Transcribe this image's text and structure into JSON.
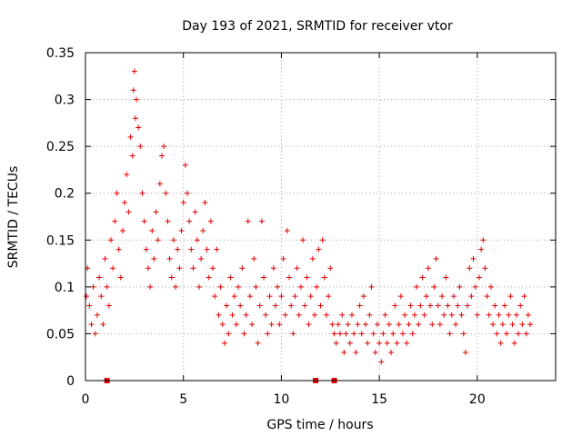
{
  "chart_data": {
    "type": "scatter",
    "title": "Day 193 of 2021, SRMTID for receiver vtor",
    "xlabel": "GPS time / hours",
    "ylabel": "SRMTID / TECUs",
    "xlim": [
      0,
      24
    ],
    "ylim": [
      0,
      0.35
    ],
    "x_ticks": [
      "0",
      "5",
      "10",
      "15",
      "20"
    ],
    "y_ticks": [
      "0",
      "0.05",
      "0.1",
      "0.15",
      "0.2",
      "0.25",
      "0.3",
      "0.35"
    ],
    "grid": true,
    "marker": "+",
    "color": "#e00000",
    "series": [
      {
        "name": "SRMTID",
        "points": [
          [
            0.05,
            0.09
          ],
          [
            0.1,
            0.12
          ],
          [
            0.2,
            0.08
          ],
          [
            0.3,
            0.06
          ],
          [
            0.4,
            0.1
          ],
          [
            0.5,
            0.05
          ],
          [
            0.6,
            0.07
          ],
          [
            0.7,
            0.11
          ],
          [
            0.8,
            0.09
          ],
          [
            0.9,
            0.06
          ],
          [
            1.0,
            0.13
          ],
          [
            1.1,
            0.1
          ],
          [
            1.2,
            0.08
          ],
          [
            1.3,
            0.15
          ],
          [
            1.4,
            0.12
          ],
          [
            1.5,
            0.17
          ],
          [
            1.6,
            0.2
          ],
          [
            1.7,
            0.14
          ],
          [
            1.8,
            0.11
          ],
          [
            1.9,
            0.16
          ],
          [
            2.0,
            0.19
          ],
          [
            2.1,
            0.22
          ],
          [
            2.2,
            0.18
          ],
          [
            2.3,
            0.26
          ],
          [
            2.4,
            0.24
          ],
          [
            2.45,
            0.31
          ],
          [
            2.5,
            0.33
          ],
          [
            2.55,
            0.28
          ],
          [
            2.6,
            0.3
          ],
          [
            2.7,
            0.27
          ],
          [
            2.8,
            0.25
          ],
          [
            2.9,
            0.2
          ],
          [
            3.0,
            0.17
          ],
          [
            3.1,
            0.14
          ],
          [
            3.2,
            0.12
          ],
          [
            3.3,
            0.1
          ],
          [
            3.4,
            0.16
          ],
          [
            3.5,
            0.13
          ],
          [
            3.6,
            0.18
          ],
          [
            3.7,
            0.15
          ],
          [
            3.8,
            0.21
          ],
          [
            3.9,
            0.24
          ],
          [
            4.0,
            0.25
          ],
          [
            4.1,
            0.2
          ],
          [
            4.2,
            0.17
          ],
          [
            4.3,
            0.13
          ],
          [
            4.4,
            0.11
          ],
          [
            4.5,
            0.15
          ],
          [
            4.6,
            0.1
          ],
          [
            4.7,
            0.14
          ],
          [
            4.8,
            0.12
          ],
          [
            4.9,
            0.16
          ],
          [
            5.0,
            0.19
          ],
          [
            5.1,
            0.23
          ],
          [
            5.2,
            0.2
          ],
          [
            5.3,
            0.17
          ],
          [
            5.4,
            0.14
          ],
          [
            5.5,
            0.12
          ],
          [
            5.6,
            0.18
          ],
          [
            5.7,
            0.15
          ],
          [
            5.8,
            0.1
          ],
          [
            5.9,
            0.13
          ],
          [
            6.0,
            0.16
          ],
          [
            6.1,
            0.19
          ],
          [
            6.2,
            0.14
          ],
          [
            6.3,
            0.11
          ],
          [
            6.4,
            0.17
          ],
          [
            6.5,
            0.12
          ],
          [
            6.6,
            0.09
          ],
          [
            6.7,
            0.14
          ],
          [
            6.8,
            0.07
          ],
          [
            6.9,
            0.1
          ],
          [
            7.0,
            0.06
          ],
          [
            7.1,
            0.04
          ],
          [
            7.2,
            0.08
          ],
          [
            7.3,
            0.05
          ],
          [
            7.4,
            0.11
          ],
          [
            7.5,
            0.07
          ],
          [
            7.6,
            0.09
          ],
          [
            7.7,
            0.06
          ],
          [
            7.8,
            0.1
          ],
          [
            7.9,
            0.08
          ],
          [
            8.0,
            0.12
          ],
          [
            8.1,
            0.05
          ],
          [
            8.2,
            0.07
          ],
          [
            8.3,
            0.17
          ],
          [
            8.4,
            0.09
          ],
          [
            8.5,
            0.06
          ],
          [
            8.6,
            0.13
          ],
          [
            8.7,
            0.1
          ],
          [
            8.8,
            0.04
          ],
          [
            8.9,
            0.08
          ],
          [
            9.0,
            0.17
          ],
          [
            9.1,
            0.11
          ],
          [
            9.2,
            0.07
          ],
          [
            9.3,
            0.05
          ],
          [
            9.4,
            0.09
          ],
          [
            9.5,
            0.06
          ],
          [
            9.6,
            0.12
          ],
          [
            9.7,
            0.08
          ],
          [
            9.8,
            0.1
          ],
          [
            9.9,
            0.06
          ],
          [
            10.0,
            0.09
          ],
          [
            10.1,
            0.13
          ],
          [
            10.2,
            0.07
          ],
          [
            10.3,
            0.16
          ],
          [
            10.4,
            0.11
          ],
          [
            10.5,
            0.08
          ],
          [
            10.6,
            0.05
          ],
          [
            10.7,
            0.09
          ],
          [
            10.8,
            0.12
          ],
          [
            10.9,
            0.07
          ],
          [
            11.0,
            0.1
          ],
          [
            11.1,
            0.15
          ],
          [
            11.2,
            0.08
          ],
          [
            11.3,
            0.11
          ],
          [
            11.4,
            0.06
          ],
          [
            11.5,
            0.09
          ],
          [
            11.6,
            0.13
          ],
          [
            11.7,
            0.07
          ],
          [
            11.8,
            0.1
          ],
          [
            11.9,
            0.14
          ],
          [
            12.0,
            0.08
          ],
          [
            12.1,
            0.15
          ],
          [
            12.2,
            0.11
          ],
          [
            12.3,
            0.07
          ],
          [
            12.4,
            0.09
          ],
          [
            12.5,
            0.12
          ],
          [
            12.6,
            0.06
          ],
          [
            12.7,
            0.05
          ],
          [
            12.8,
            0.04
          ],
          [
            12.9,
            0.06
          ],
          [
            13.0,
            0.05
          ],
          [
            13.1,
            0.07
          ],
          [
            13.2,
            0.03
          ],
          [
            13.3,
            0.05
          ],
          [
            13.4,
            0.06
          ],
          [
            13.5,
            0.04
          ],
          [
            13.6,
            0.07
          ],
          [
            13.7,
            0.05
          ],
          [
            13.8,
            0.03
          ],
          [
            13.9,
            0.06
          ],
          [
            14.0,
            0.08
          ],
          [
            14.1,
            0.05
          ],
          [
            14.2,
            0.09
          ],
          [
            14.3,
            0.06
          ],
          [
            14.4,
            0.04
          ],
          [
            14.5,
            0.07
          ],
          [
            14.6,
            0.1
          ],
          [
            14.7,
            0.05
          ],
          [
            14.8,
            0.03
          ],
          [
            14.9,
            0.06
          ],
          [
            15.0,
            0.04
          ],
          [
            15.1,
            0.02
          ],
          [
            15.2,
            0.05
          ],
          [
            15.3,
            0.07
          ],
          [
            15.4,
            0.04
          ],
          [
            15.5,
            0.06
          ],
          [
            15.6,
            0.03
          ],
          [
            15.7,
            0.05
          ],
          [
            15.8,
            0.08
          ],
          [
            15.9,
            0.04
          ],
          [
            16.0,
            0.06
          ],
          [
            16.1,
            0.09
          ],
          [
            16.2,
            0.05
          ],
          [
            16.3,
            0.07
          ],
          [
            16.4,
            0.04
          ],
          [
            16.5,
            0.06
          ],
          [
            16.6,
            0.08
          ],
          [
            16.7,
            0.05
          ],
          [
            16.8,
            0.07
          ],
          [
            16.9,
            0.1
          ],
          [
            17.0,
            0.06
          ],
          [
            17.1,
            0.08
          ],
          [
            17.2,
            0.11
          ],
          [
            17.3,
            0.07
          ],
          [
            17.4,
            0.09
          ],
          [
            17.5,
            0.12
          ],
          [
            17.6,
            0.08
          ],
          [
            17.7,
            0.06
          ],
          [
            17.8,
            0.1
          ],
          [
            17.9,
            0.13
          ],
          [
            18.0,
            0.08
          ],
          [
            18.1,
            0.06
          ],
          [
            18.2,
            0.09
          ],
          [
            18.3,
            0.07
          ],
          [
            18.4,
            0.11
          ],
          [
            18.5,
            0.08
          ],
          [
            18.6,
            0.05
          ],
          [
            18.7,
            0.07
          ],
          [
            18.8,
            0.09
          ],
          [
            18.9,
            0.06
          ],
          [
            19.0,
            0.08
          ],
          [
            19.1,
            0.1
          ],
          [
            19.2,
            0.07
          ],
          [
            19.3,
            0.05
          ],
          [
            19.4,
            0.03
          ],
          [
            19.5,
            0.08
          ],
          [
            19.6,
            0.12
          ],
          [
            19.7,
            0.09
          ],
          [
            19.8,
            0.13
          ],
          [
            19.9,
            0.1
          ],
          [
            20.0,
            0.07
          ],
          [
            20.1,
            0.11
          ],
          [
            20.2,
            0.14
          ],
          [
            20.3,
            0.15
          ],
          [
            20.4,
            0.12
          ],
          [
            20.5,
            0.09
          ],
          [
            20.6,
            0.07
          ],
          [
            20.7,
            0.1
          ],
          [
            20.8,
            0.06
          ],
          [
            20.9,
            0.08
          ],
          [
            21.0,
            0.05
          ],
          [
            21.1,
            0.07
          ],
          [
            21.2,
            0.04
          ],
          [
            21.3,
            0.06
          ],
          [
            21.4,
            0.08
          ],
          [
            21.5,
            0.05
          ],
          [
            21.6,
            0.07
          ],
          [
            21.7,
            0.09
          ],
          [
            21.8,
            0.06
          ],
          [
            21.9,
            0.04
          ],
          [
            22.0,
            0.07
          ],
          [
            22.1,
            0.05
          ],
          [
            22.2,
            0.08
          ],
          [
            22.3,
            0.06
          ],
          [
            22.4,
            0.09
          ],
          [
            22.5,
            0.05
          ],
          [
            22.6,
            0.07
          ],
          [
            22.7,
            0.06
          ]
        ]
      }
    ],
    "gap_markers_x": [
      1.1,
      11.75,
      12.7
    ]
  }
}
